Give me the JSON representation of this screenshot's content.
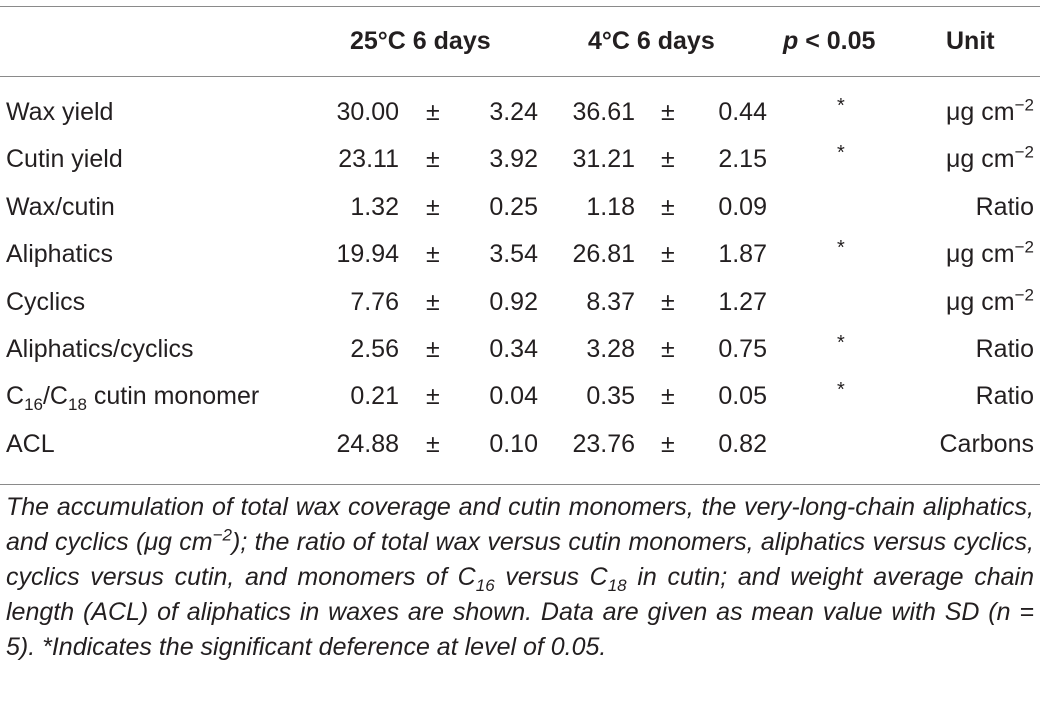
{
  "table": {
    "header": {
      "col_25": "25°C 6 days",
      "col_4": "4°C 6 days",
      "col_p_italic": "p",
      "col_p_rest": " < 0.05",
      "col_unit": "Unit"
    },
    "rows": [
      {
        "label": "Wax yield",
        "mean25": "30.00",
        "pm1": "±",
        "sd25": "3.24",
        "mean4": "36.61",
        "pm2": "±",
        "sd4": "0.44",
        "sig": "*",
        "unit_base": "μg cm",
        "unit_sup": "−2"
      },
      {
        "label": "Cutin yield",
        "mean25": "23.11",
        "pm1": "±",
        "sd25": "3.92",
        "mean4": "31.21",
        "pm2": "±",
        "sd4": "2.15",
        "sig": "*",
        "unit_base": "μg cm",
        "unit_sup": "−2"
      },
      {
        "label": "Wax/cutin",
        "mean25": "1.32",
        "pm1": "±",
        "sd25": "0.25",
        "mean4": "1.18",
        "pm2": "±",
        "sd4": "0.09",
        "sig": "",
        "unit_base": "Ratio",
        "unit_sup": ""
      },
      {
        "label": "Aliphatics",
        "mean25": "19.94",
        "pm1": "±",
        "sd25": "3.54",
        "mean4": "26.81",
        "pm2": "±",
        "sd4": "1.87",
        "sig": "*",
        "unit_base": "μg cm",
        "unit_sup": "−2"
      },
      {
        "label": "Cyclics",
        "mean25": "7.76",
        "pm1": "±",
        "sd25": "0.92",
        "mean4": "8.37",
        "pm2": "±",
        "sd4": "1.27",
        "sig": "",
        "unit_base": "μg cm",
        "unit_sup": "−2"
      },
      {
        "label": "Aliphatics/cyclics",
        "mean25": "2.56",
        "pm1": "±",
        "sd25": "0.34",
        "mean4": "3.28",
        "pm2": "±",
        "sd4": "0.75",
        "sig": "*",
        "unit_base": "Ratio",
        "unit_sup": ""
      },
      {
        "label": "C",
        "label_sub1": "16",
        "label_mid": "/C",
        "label_sub2": "18",
        "label_end": " cutin monomer",
        "mean25": "0.21",
        "pm1": "±",
        "sd25": "0.04",
        "mean4": "0.35",
        "pm2": "±",
        "sd4": "0.05",
        "sig": "*",
        "unit_base": "Ratio",
        "unit_sup": ""
      },
      {
        "label": "ACL",
        "mean25": "24.88",
        "pm1": "±",
        "sd25": "0.10",
        "mean4": "23.76",
        "pm2": "±",
        "sd4": "0.82",
        "sig": "",
        "unit_base": "Carbons",
        "unit_sup": ""
      }
    ]
  },
  "caption": {
    "p1": "The accumulation of total wax coverage and cutin monomers, the very-long-chain aliphatics, and cyclics (μg cm",
    "p1_sup": "−2",
    "p2": "); the ratio of total wax versus cutin monomers, aliphatics versus cyclics, cyclics versus cutin, and monomers of C",
    "p2_sub": "16",
    "p3": " versus C",
    "p3_sub": "18",
    "p4": " in cutin; and weight average chain length (ACL) of aliphatics in waxes are shown. Data are given as mean value with SD (n = 5). *Indicates the significant deference at level of 0.05."
  }
}
